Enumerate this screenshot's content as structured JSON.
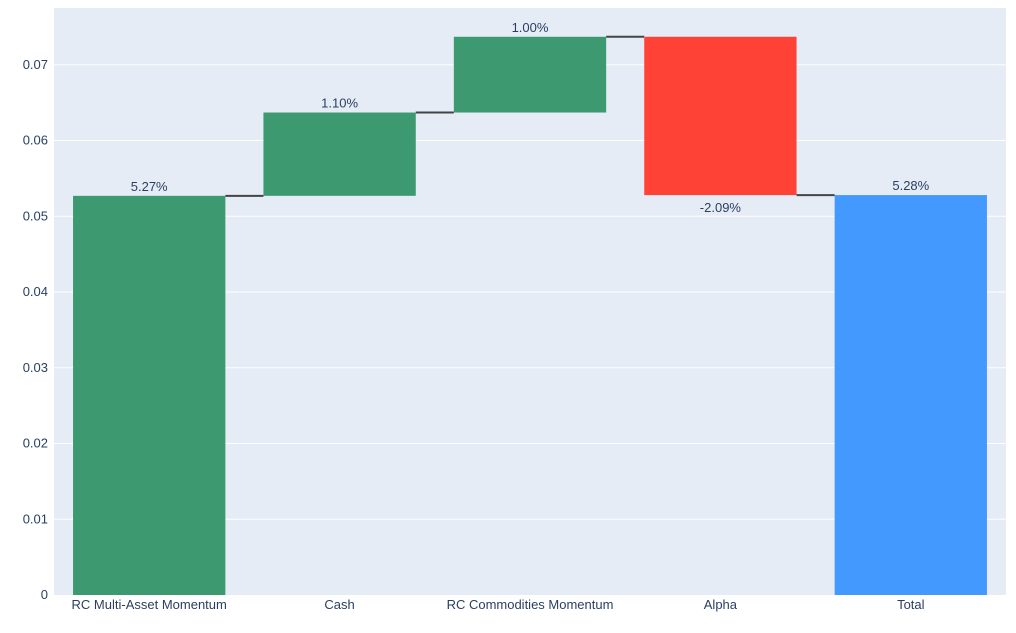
{
  "chart_data": {
    "type": "waterfall",
    "title": "",
    "xlabel": "",
    "ylabel": "",
    "ylim": [
      0,
      0.0775
    ],
    "yticks": [
      0,
      0.01,
      0.02,
      0.03,
      0.04,
      0.05,
      0.06,
      0.07
    ],
    "ytick_labels": [
      "0",
      "0.01",
      "0.02",
      "0.03",
      "0.04",
      "0.05",
      "0.06",
      "0.07"
    ],
    "grid": true,
    "steps": [
      {
        "category": "RC Multi-Asset Momentum",
        "measure": "relative",
        "value": 0.0527,
        "label": "5.27%"
      },
      {
        "category": "Cash",
        "measure": "relative",
        "value": 0.011,
        "label": "1.10%"
      },
      {
        "category": "RC Commodities Momentum",
        "measure": "relative",
        "value": 0.01,
        "label": "1.00%"
      },
      {
        "category": "Alpha",
        "measure": "relative",
        "value": -0.0209,
        "label": "-2.09%"
      },
      {
        "category": "Total",
        "measure": "total",
        "value": 0.0528,
        "label": "5.28%"
      }
    ],
    "colors": {
      "increase": "#3d9970",
      "decrease": "#ff4136",
      "total": "#4499ff",
      "connector": "#444444",
      "plot_bg": "#e5ecf6",
      "grid": "#ffffff"
    }
  }
}
